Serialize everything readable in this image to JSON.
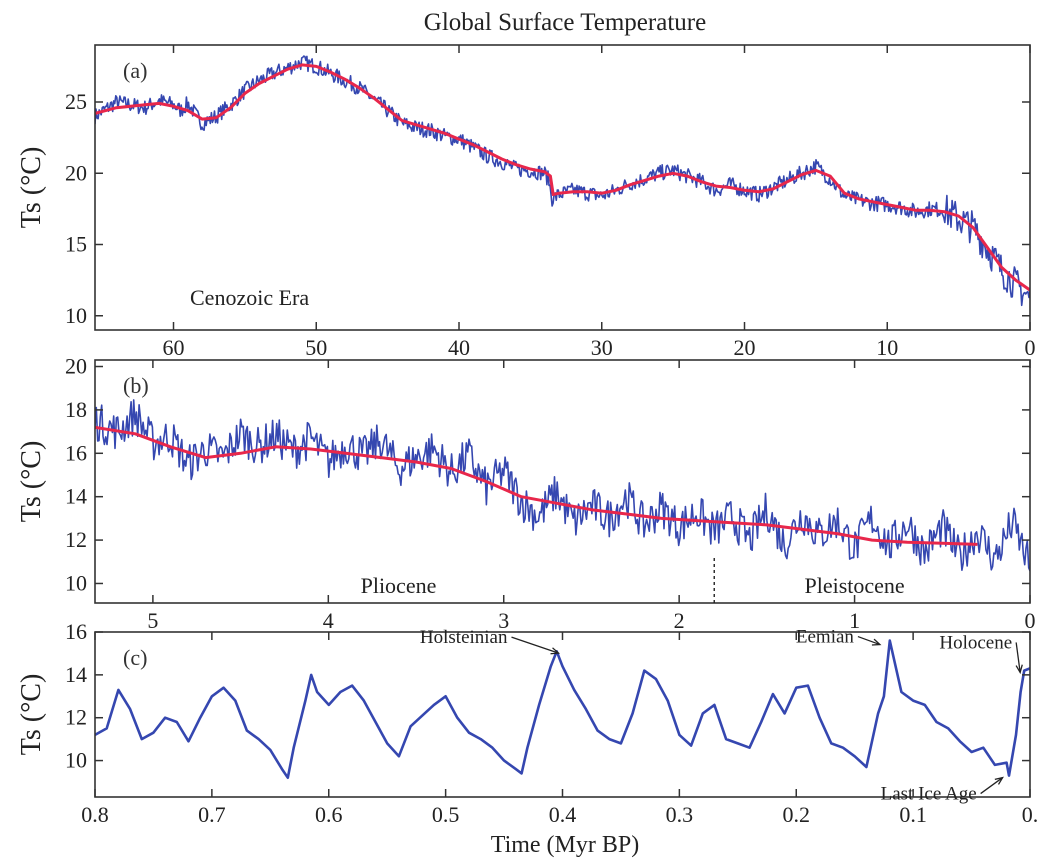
{
  "figure": {
    "title": "Global Surface Temperature",
    "xlabel": "Time (Myr BP)"
  },
  "colors": {
    "raw": "#3547b0",
    "smooth": "#e8274b",
    "axes": "#333333"
  },
  "chart_data": [
    {
      "type": "line",
      "panel_label": "(a)",
      "annotation": "Cenozoic Era",
      "ylabel": "Ts (°C)",
      "xlim": [
        65.5,
        0
      ],
      "ylim": [
        9,
        29
      ],
      "xticks": [
        60,
        50,
        40,
        30,
        20,
        10,
        0
      ],
      "xtick_labels": [
        "60",
        "50",
        "40",
        "30",
        "20",
        "10",
        "0"
      ],
      "yticks": [
        10,
        15,
        20,
        25
      ],
      "ytick_labels": [
        "10",
        "15",
        "20",
        "25"
      ],
      "grid": false,
      "series": [
        {
          "style": "raw",
          "x": [
            65.5,
            64,
            63,
            62,
            61,
            60,
            59.5,
            59,
            58,
            57,
            56,
            55,
            54,
            53,
            52,
            51,
            50,
            49,
            48,
            47,
            46,
            45,
            44,
            43,
            42,
            41,
            40,
            39,
            38,
            37,
            36,
            35,
            34,
            33.7,
            33.5,
            33,
            32,
            31,
            30,
            29,
            28,
            27,
            26,
            25,
            24,
            23,
            22,
            21,
            20,
            19,
            18,
            17,
            16,
            15,
            14,
            13,
            12,
            11,
            10,
            9,
            8,
            7,
            6,
            5,
            4,
            3,
            2,
            1,
            0
          ],
          "y": [
            24,
            25,
            24.8,
            24.6,
            25.1,
            24.8,
            24.4,
            24.9,
            23.5,
            24,
            24.8,
            25.8,
            26.5,
            27,
            27.4,
            27.8,
            27.5,
            27,
            26.5,
            26,
            25.2,
            24.4,
            23.5,
            23.2,
            23,
            22.6,
            22.4,
            21.8,
            21.2,
            20.8,
            20.3,
            20.2,
            20,
            19.5,
            18.2,
            18.5,
            18.8,
            18.6,
            18.4,
            18.8,
            19.3,
            19.6,
            20,
            20.2,
            19.8,
            19.4,
            18.8,
            19.2,
            18.8,
            18.5,
            19,
            19.5,
            20,
            20.5,
            19.6,
            18.4,
            18.1,
            17.9,
            17.8,
            17.6,
            17.3,
            17.5,
            17.4,
            16.8,
            16.2,
            14.8,
            13.2,
            12.2,
            11.2
          ]
        },
        {
          "style": "smooth",
          "x": [
            65.5,
            64,
            63,
            62,
            61,
            60,
            59,
            58,
            57,
            56,
            55,
            54,
            53,
            52,
            51,
            50,
            49,
            48,
            47,
            46,
            45,
            44,
            43,
            42,
            41,
            40,
            39,
            38,
            37,
            36,
            35,
            34,
            33.6,
            33.4,
            33,
            32,
            31,
            30,
            29,
            28,
            27,
            26,
            25,
            24,
            23,
            22,
            21,
            20,
            19,
            18,
            17,
            16,
            15,
            14,
            13,
            12,
            11,
            10,
            9,
            8,
            7,
            6,
            5,
            4,
            3,
            2,
            1,
            0
          ],
          "y": [
            24.2,
            24.6,
            24.7,
            24.8,
            24.9,
            24.7,
            24.4,
            23.8,
            23.9,
            24.6,
            25.6,
            26.3,
            26.8,
            27.3,
            27.6,
            27.5,
            27.1,
            26.6,
            26,
            25.3,
            24.5,
            23.7,
            23.4,
            23.1,
            22.8,
            22.4,
            22,
            21.5,
            21,
            20.6,
            20.3,
            20.1,
            19.8,
            18.5,
            18.6,
            18.7,
            18.7,
            18.6,
            18.8,
            19.2,
            19.5,
            19.8,
            20,
            19.8,
            19.4,
            19.1,
            19,
            18.8,
            18.7,
            18.9,
            19.4,
            19.9,
            20.2,
            19.8,
            18.6,
            18.2,
            18,
            17.8,
            17.6,
            17.4,
            17.4,
            17.3,
            17,
            16.2,
            14.8,
            13.4,
            12.5,
            11.8
          ]
        }
      ]
    },
    {
      "type": "line",
      "panel_label": "(b)",
      "ylabel": "Ts (°C)",
      "xlim": [
        5.33,
        0
      ],
      "ylim": [
        9.1,
        20.3
      ],
      "xticks": [
        5,
        4,
        3,
        2,
        1,
        0
      ],
      "xtick_labels": [
        "5",
        "4",
        "3",
        "2",
        "1",
        "0"
      ],
      "yticks": [
        10,
        12,
        14,
        16,
        18,
        20
      ],
      "ytick_labels": [
        "10",
        "12",
        "14",
        "16",
        "18",
        "20"
      ],
      "grid": false,
      "epochs": [
        {
          "label": "Pliocene",
          "x_center": 3.6
        },
        {
          "label": "Pleistocene",
          "x_center": 1.0
        }
      ],
      "boundary_x": 1.8,
      "series": [
        {
          "style": "raw",
          "x": [
            5.33,
            5.2,
            5.1,
            5.0,
            4.9,
            4.8,
            4.7,
            4.6,
            4.5,
            4.4,
            4.3,
            4.2,
            4.1,
            4.0,
            3.9,
            3.8,
            3.7,
            3.6,
            3.5,
            3.4,
            3.3,
            3.2,
            3.1,
            3.0,
            2.9,
            2.8,
            2.7,
            2.6,
            2.5,
            2.4,
            2.3,
            2.2,
            2.1,
            2.0,
            1.9,
            1.8,
            1.7,
            1.6,
            1.5,
            1.4,
            1.3,
            1.2,
            1.1,
            1.0,
            0.9,
            0.8,
            0.7,
            0.6,
            0.5,
            0.4,
            0.3,
            0.2,
            0.1,
            0.0
          ],
          "y": [
            17.5,
            17,
            17.8,
            16.5,
            16.8,
            15.5,
            16.2,
            15.8,
            16.9,
            16.3,
            16.8,
            16.1,
            16.7,
            15.6,
            16.4,
            15.9,
            16.6,
            15.3,
            15.8,
            16.2,
            15.1,
            15.9,
            14.4,
            15.2,
            13.8,
            13.1,
            14.2,
            12.8,
            13.6,
            13.0,
            14.0,
            12.7,
            13.5,
            12.6,
            13.3,
            12.4,
            13.1,
            12.0,
            13.4,
            11.8,
            13.2,
            12.2,
            12.9,
            11.6,
            13.0,
            11.7,
            12.8,
            11.4,
            12.6,
            11.2,
            12.4,
            11.1,
            12.8,
            10.8
          ]
        },
        {
          "style": "smooth",
          "x": [
            5.33,
            5.1,
            4.9,
            4.7,
            4.5,
            4.3,
            4.1,
            3.9,
            3.7,
            3.5,
            3.3,
            3.1,
            2.9,
            2.7,
            2.5,
            2.3,
            2.1,
            1.9,
            1.7,
            1.5,
            1.3,
            1.1,
            0.9,
            0.7,
            0.5,
            0.3
          ],
          "y": [
            17.2,
            16.9,
            16.3,
            15.8,
            16.0,
            16.3,
            16.2,
            16.0,
            15.8,
            15.6,
            15.3,
            14.7,
            14.0,
            13.7,
            13.4,
            13.2,
            13.0,
            12.9,
            12.8,
            12.7,
            12.5,
            12.3,
            12.0,
            11.9,
            11.85,
            11.8
          ]
        }
      ]
    },
    {
      "type": "line",
      "panel_label": "(c)",
      "ylabel": "Ts (°C)",
      "xlim": [
        0.8,
        0
      ],
      "ylim": [
        8.3,
        16
      ],
      "xticks": [
        0.8,
        0.7,
        0.6,
        0.5,
        0.4,
        0.3,
        0.2,
        0.1,
        0
      ],
      "xtick_labels": [
        "0.8",
        "0.7",
        "0.6",
        "0.5",
        "0.4",
        "0.3",
        "0.2",
        "0.1",
        "0."
      ],
      "yticks": [
        10,
        12,
        14,
        16
      ],
      "ytick_labels": [
        "10",
        "12",
        "14",
        "16"
      ],
      "grid": false,
      "annotations": [
        {
          "label": "Holsteinian",
          "x": 0.4,
          "y": 15.2
        },
        {
          "label": "Eemian",
          "x": 0.125,
          "y": 15.6
        },
        {
          "label": "Holocene",
          "x": 0.005,
          "y": 14.3
        },
        {
          "label": "Last Ice Age",
          "x": 0.02,
          "y": 9.3
        }
      ],
      "series": [
        {
          "style": "raw",
          "x": [
            0.8,
            0.79,
            0.78,
            0.77,
            0.76,
            0.75,
            0.74,
            0.73,
            0.72,
            0.71,
            0.7,
            0.69,
            0.68,
            0.67,
            0.66,
            0.65,
            0.64,
            0.635,
            0.63,
            0.62,
            0.615,
            0.61,
            0.6,
            0.59,
            0.58,
            0.57,
            0.56,
            0.55,
            0.54,
            0.53,
            0.52,
            0.51,
            0.5,
            0.49,
            0.48,
            0.47,
            0.46,
            0.45,
            0.44,
            0.435,
            0.43,
            0.42,
            0.41,
            0.405,
            0.4,
            0.39,
            0.38,
            0.37,
            0.36,
            0.35,
            0.34,
            0.33,
            0.32,
            0.31,
            0.3,
            0.29,
            0.28,
            0.27,
            0.26,
            0.25,
            0.24,
            0.23,
            0.22,
            0.21,
            0.2,
            0.19,
            0.18,
            0.17,
            0.16,
            0.15,
            0.14,
            0.13,
            0.125,
            0.12,
            0.11,
            0.1,
            0.09,
            0.08,
            0.07,
            0.06,
            0.05,
            0.04,
            0.03,
            0.02,
            0.018,
            0.012,
            0.008,
            0.005,
            0.0
          ],
          "y": [
            11.2,
            11.5,
            13.3,
            12.4,
            11.0,
            11.3,
            12.0,
            11.8,
            10.9,
            12.0,
            13.0,
            13.4,
            12.8,
            11.4,
            11.0,
            10.5,
            9.6,
            9.2,
            10.6,
            12.8,
            14.0,
            13.2,
            12.6,
            13.2,
            13.5,
            12.8,
            11.8,
            10.8,
            10.2,
            11.6,
            12.1,
            12.6,
            13.0,
            12.0,
            11.3,
            11.0,
            10.6,
            10.0,
            9.6,
            9.4,
            10.6,
            12.6,
            14.4,
            15.1,
            14.4,
            13.3,
            12.4,
            11.4,
            11.0,
            10.8,
            12.2,
            14.2,
            13.8,
            12.8,
            11.2,
            10.7,
            12.2,
            12.6,
            11.0,
            10.8,
            10.6,
            11.8,
            13.1,
            12.2,
            13.4,
            13.5,
            12.0,
            10.8,
            10.6,
            10.2,
            9.7,
            12.2,
            13.0,
            15.6,
            13.2,
            12.8,
            12.6,
            11.8,
            11.5,
            10.9,
            10.4,
            10.6,
            9.8,
            9.9,
            9.3,
            11.2,
            13.2,
            14.2,
            14.3
          ]
        }
      ]
    }
  ]
}
